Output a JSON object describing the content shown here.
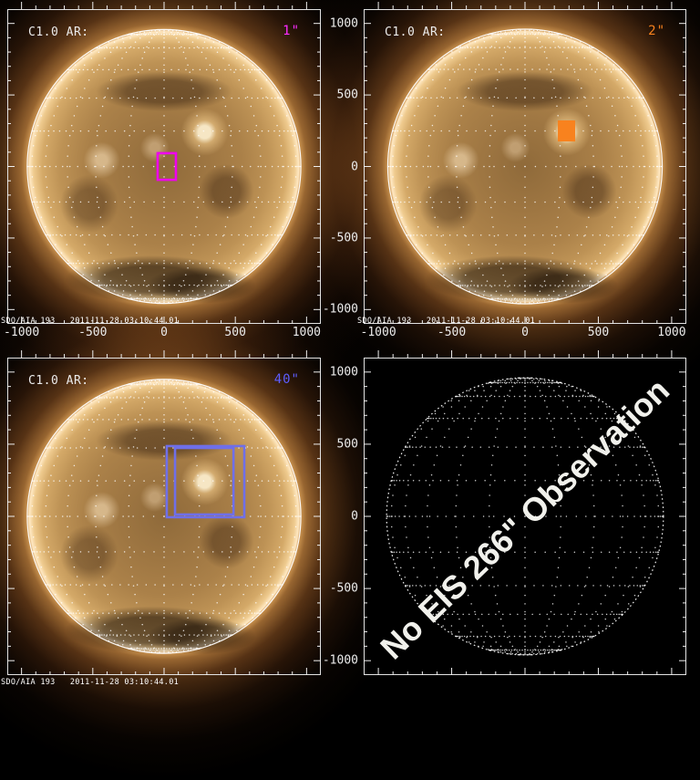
{
  "colors": {
    "background": "#000000",
    "frame": "#e2e2e2",
    "grid_dots": "#ffffff",
    "slit_1_color": "#ff2cff",
    "slit_2_color": "#f8821e",
    "slit_40_color": "#5d5dff"
  },
  "chart_data": [
    {
      "type": "image",
      "panel": "top-left",
      "title": "C1.0 AR:",
      "annotation": "1\"",
      "annotation_color": "#ff2cff",
      "caption": "SDO/AIA 193   2011-11-28 03:10:44.01",
      "x_range": [
        -1100,
        1100
      ],
      "y_range": [
        -1100,
        1100
      ],
      "x_ticks": [
        -1000,
        -500,
        0,
        500,
        1000
      ],
      "y_ticks": [
        -1000,
        -500,
        0,
        500,
        1000
      ],
      "x_tick_labels_visible": true,
      "y_tick_labels_visible": false,
      "show_sun_image": true,
      "limb_dotted": false,
      "solar_radius_arcsec": 960,
      "fov_boxes_arcsec": [
        {
          "x": [
            -45,
            83
          ],
          "y": [
            -93,
            93
          ],
          "style": "outline",
          "color": "#ee00ee"
        }
      ]
    },
    {
      "type": "image",
      "panel": "top-right",
      "title": "C1.0 AR:",
      "annotation": "2\"",
      "annotation_color": "#f8821e",
      "caption": "SDO/AIA 193   2011-11-28 03:10:44.01",
      "x_range": [
        -1100,
        1100
      ],
      "y_range": [
        -1100,
        1100
      ],
      "x_ticks": [
        -1000,
        -500,
        0,
        500,
        1000
      ],
      "y_ticks": [
        -1000,
        -500,
        0,
        500,
        1000
      ],
      "x_tick_labels_visible": true,
      "y_tick_labels_visible": true,
      "show_sun_image": true,
      "limb_dotted": false,
      "solar_radius_arcsec": 960,
      "fov_boxes_arcsec": [
        {
          "x": [
            224,
            342
          ],
          "y": [
            175,
            322
          ],
          "style": "filled",
          "color": "#f8821e"
        }
      ]
    },
    {
      "type": "image",
      "panel": "bottom-left",
      "title": "C1.0 AR:",
      "annotation": "40\"",
      "annotation_color": "#5d5dff",
      "caption": "SDO/AIA 193   2011-11-28 03:10:44.01",
      "x_range": [
        -1100,
        1100
      ],
      "y_range": [
        -1100,
        1100
      ],
      "x_ticks": [
        -1000,
        -500,
        0,
        500,
        1000
      ],
      "y_ticks": [
        -1000,
        -500,
        0,
        500,
        1000
      ],
      "x_tick_labels_visible": false,
      "y_tick_labels_visible": false,
      "show_sun_image": true,
      "limb_dotted": false,
      "solar_radius_arcsec": 960,
      "fov_boxes_arcsec": [
        {
          "x": [
            19,
            563
          ],
          "y": [
            -6,
            487
          ],
          "style": "outline",
          "color": "#6f6fe8"
        },
        {
          "x": [
            77,
            487
          ],
          "y": [
            13,
            474
          ],
          "style": "outline",
          "color": "#6f6fe8"
        }
      ]
    },
    {
      "type": "image",
      "panel": "bottom-right",
      "message": "No EIS 266\" Observation",
      "x_range": [
        -1100,
        1100
      ],
      "y_range": [
        -1100,
        1100
      ],
      "x_ticks": [
        -1000,
        -500,
        0,
        500,
        1000
      ],
      "y_ticks": [
        -1000,
        -500,
        0,
        500,
        1000
      ],
      "x_tick_labels_visible": false,
      "y_tick_labels_visible": true,
      "show_sun_image": false,
      "limb_dotted": true,
      "solar_radius_arcsec": 960,
      "fov_boxes_arcsec": []
    }
  ]
}
